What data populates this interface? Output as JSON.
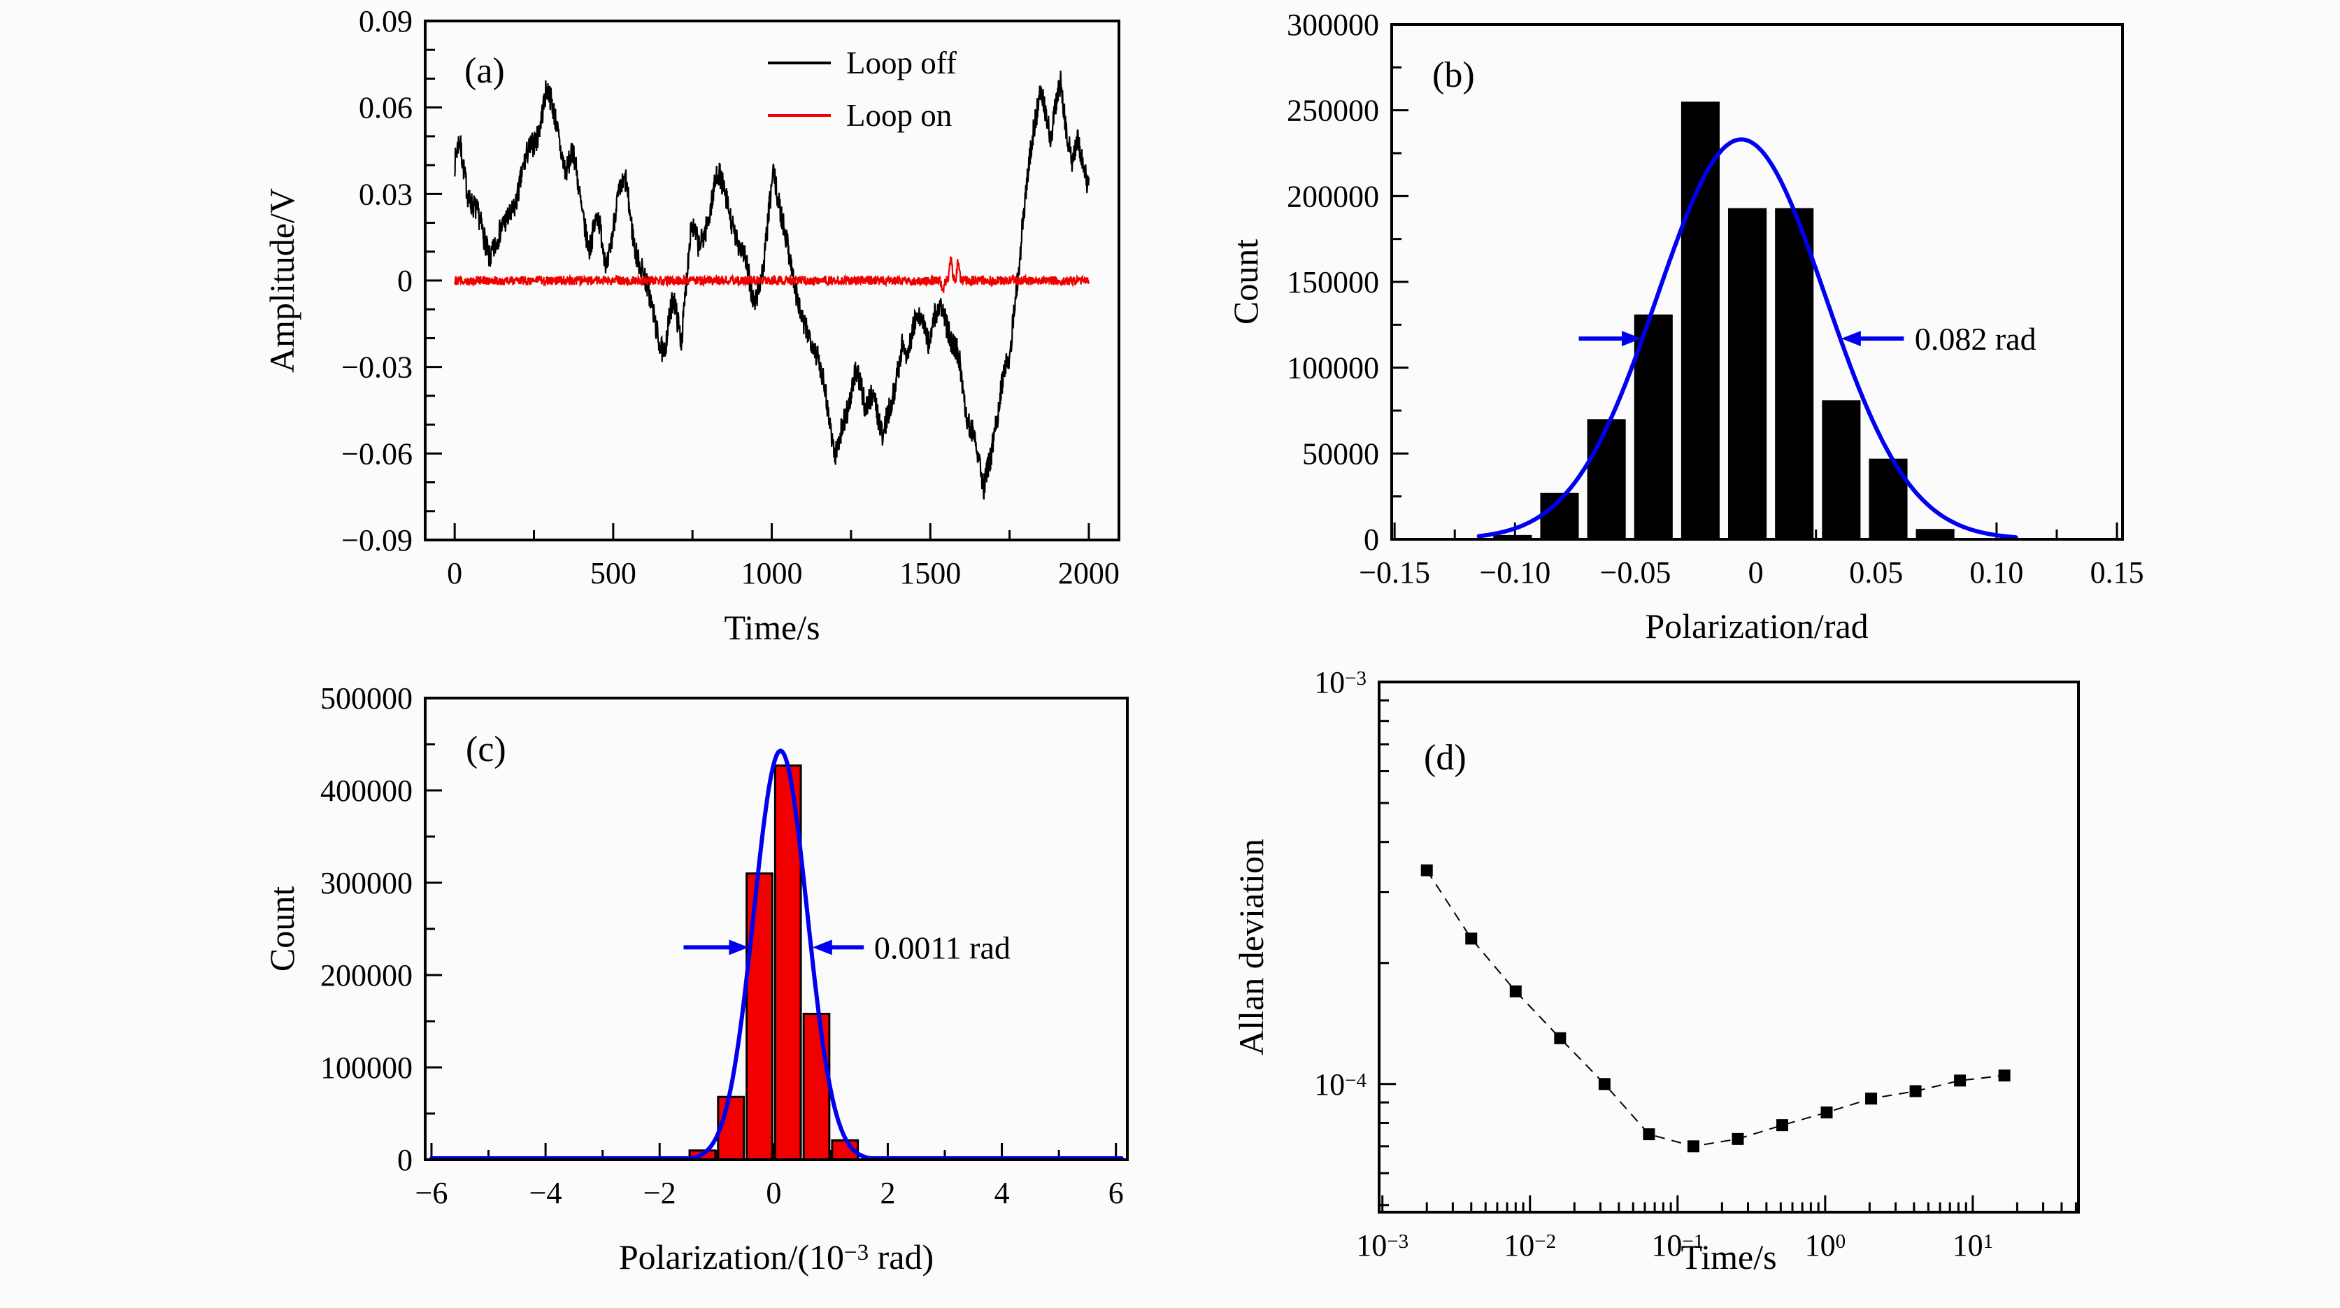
{
  "figure": {
    "background": "#fbfbfb",
    "panel_letters": [
      "(a)",
      "(b)",
      "(c)",
      "(d)"
    ]
  },
  "chart_data": [
    {
      "id": "a",
      "type": "line",
      "label": "(a)",
      "xlabel": "Time/s",
      "ylabel": "Amplitude/V",
      "xlim": [
        -93,
        2095
      ],
      "ylim": [
        -0.09,
        0.09
      ],
      "grid": false,
      "legend_position": "top-right-inside",
      "xticks": {
        "values": [
          0,
          500,
          1000,
          1500,
          2000
        ],
        "labels": [
          "0",
          "500",
          "1000",
          "1500",
          "2000"
        ],
        "minor_step": 250
      },
      "yticks": {
        "values": [
          0.09,
          0.06,
          0.03,
          0,
          -0.03,
          -0.06,
          -0.09
        ],
        "labels": [
          "0.09",
          "0.06",
          "0.03",
          "0",
          "−0.03",
          "−0.06",
          "−0.09"
        ],
        "minor_step": 0.01
      },
      "legend": {
        "entries": [
          {
            "label": "Loop off",
            "color": "#000000"
          },
          {
            "label": "Loop on",
            "color": "#ee0000"
          }
        ]
      },
      "series": [
        {
          "name": "Loop off",
          "color": "#000000",
          "noise": 0.0045,
          "wobble": 0.002,
          "seed": 7,
          "waypoints": [
            [
              0,
              0.038
            ],
            [
              15,
              0.048
            ],
            [
              45,
              0.028
            ],
            [
              75,
              0.02
            ],
            [
              110,
              0.01
            ],
            [
              150,
              0.018
            ],
            [
              190,
              0.028
            ],
            [
              230,
              0.042
            ],
            [
              260,
              0.05
            ],
            [
              290,
              0.065
            ],
            [
              320,
              0.055
            ],
            [
              350,
              0.04
            ],
            [
              375,
              0.044
            ],
            [
              400,
              0.026
            ],
            [
              425,
              0.012
            ],
            [
              450,
              0.02
            ],
            [
              480,
              0.004
            ],
            [
              510,
              0.026
            ],
            [
              540,
              0.034
            ],
            [
              570,
              0.013
            ],
            [
              600,
              0.0
            ],
            [
              630,
              -0.012
            ],
            [
              660,
              -0.027
            ],
            [
              690,
              -0.008
            ],
            [
              715,
              -0.02
            ],
            [
              745,
              0.018
            ],
            [
              770,
              0.012
            ],
            [
              800,
              0.024
            ],
            [
              830,
              0.037
            ],
            [
              860,
              0.028
            ],
            [
              890,
              0.012
            ],
            [
              915,
              0.006
            ],
            [
              945,
              -0.007
            ],
            [
              975,
              0.004
            ],
            [
              1005,
              0.04
            ],
            [
              1035,
              0.022
            ],
            [
              1070,
              -0.002
            ],
            [
              1100,
              -0.014
            ],
            [
              1135,
              -0.027
            ],
            [
              1165,
              -0.033
            ],
            [
              1200,
              -0.062
            ],
            [
              1235,
              -0.044
            ],
            [
              1265,
              -0.03
            ],
            [
              1295,
              -0.046
            ],
            [
              1320,
              -0.037
            ],
            [
              1350,
              -0.057
            ],
            [
              1380,
              -0.042
            ],
            [
              1410,
              -0.021
            ],
            [
              1430,
              -0.026
            ],
            [
              1455,
              -0.012
            ],
            [
              1475,
              -0.01
            ],
            [
              1495,
              -0.022
            ],
            [
              1515,
              -0.014
            ],
            [
              1540,
              -0.01
            ],
            [
              1565,
              -0.021
            ],
            [
              1590,
              -0.029
            ],
            [
              1615,
              -0.046
            ],
            [
              1640,
              -0.051
            ],
            [
              1668,
              -0.073
            ],
            [
              1695,
              -0.056
            ],
            [
              1725,
              -0.037
            ],
            [
              1750,
              -0.028
            ],
            [
              1772,
              -0.002
            ],
            [
              1800,
              0.028
            ],
            [
              1825,
              0.05
            ],
            [
              1850,
              0.07
            ],
            [
              1867,
              0.059
            ],
            [
              1880,
              0.049
            ],
            [
              1897,
              0.061
            ],
            [
              1912,
              0.07
            ],
            [
              1932,
              0.051
            ],
            [
              1950,
              0.04
            ],
            [
              1965,
              0.046
            ],
            [
              1983,
              0.038
            ],
            [
              2000,
              0.033
            ]
          ]
        },
        {
          "name": "Loop on",
          "color": "#ee0000",
          "noise": 0.0016,
          "wobble": 0,
          "seed": 12,
          "waypoints": [
            [
              0,
              0
            ],
            [
              2000,
              0
            ]
          ],
          "spikes": [
            [
              1540,
              -0.004
            ],
            [
              1565,
              0.009
            ],
            [
              1588,
              0.007
            ]
          ]
        }
      ]
    },
    {
      "id": "b",
      "type": "histogram",
      "label": "(b)",
      "xlabel": "Polarization/rad",
      "ylabel": "Count",
      "xlim": [
        -0.1512,
        0.1523
      ],
      "ylim": [
        0,
        300000
      ],
      "grid": false,
      "xticks": {
        "values": [
          -0.15,
          -0.1,
          -0.05,
          0,
          0.05,
          0.1,
          0.15
        ],
        "labels": [
          "−0.15",
          "−0.10",
          "−0.05",
          "0",
          "0.05",
          "0.10",
          "0.15"
        ],
        "minor_step": 0.025
      },
      "yticks": {
        "values": [
          0,
          50000,
          100000,
          150000,
          200000,
          250000,
          300000
        ],
        "labels": [
          "0",
          "50000",
          "100000",
          "150000",
          "200000",
          "250000",
          "300000"
        ],
        "minor_step": 25000
      },
      "bars": {
        "color": "#000000",
        "width": 0.016,
        "centers": [
          -0.101,
          -0.0815,
          -0.062,
          -0.0425,
          -0.023,
          -0.0035,
          0.016,
          0.0355,
          0.055,
          0.0745
        ],
        "heights": [
          2500,
          27000,
          70000,
          131000,
          255000,
          193000,
          193000,
          81000,
          47000,
          6000
        ]
      },
      "gauss": {
        "color": "#0000ee",
        "amplitude": 233000,
        "mu": -0.006,
        "sigma": 0.035,
        "range": [
          -0.115,
          0.108
        ]
      },
      "annotation": {
        "text": "0.082 rad",
        "arrow_color": "#0000ee",
        "text_color": "#000000",
        "y": 117000,
        "arrow_left": {
          "from": -0.0735,
          "to": -0.0475
        },
        "arrow_right": {
          "from": 0.0615,
          "to": 0.0355
        },
        "text_x": 0.066
      }
    },
    {
      "id": "c",
      "type": "histogram",
      "label": "(c)",
      "xlabel_segments": [
        {
          "t": "Polarization/(10"
        },
        {
          "sup": "−3"
        },
        {
          "t": " rad)"
        }
      ],
      "ylabel": "Count",
      "xlim": [
        -6.11,
        6.2
      ],
      "ylim": [
        0,
        500000
      ],
      "grid": false,
      "xticks": {
        "values": [
          -6,
          -4,
          -2,
          0,
          2,
          4,
          6
        ],
        "labels": [
          "−6",
          "−4",
          "−2",
          "0",
          "2",
          "4",
          "6"
        ],
        "minor_step": 1
      },
      "yticks": {
        "values": [
          0,
          100000,
          200000,
          300000,
          400000,
          500000
        ],
        "labels": [
          "0",
          "100000",
          "200000",
          "300000",
          "400000",
          "500000"
        ],
        "minor_step": 50000
      },
      "bars": {
        "color": "#f20000",
        "edge": "#000000",
        "width": 0.45,
        "centers": [
          -1.25,
          -0.75,
          -0.25,
          0.25,
          0.75,
          1.25
        ],
        "heights": [
          10000,
          68000,
          310000,
          427000,
          158000,
          21000
        ]
      },
      "gauss": {
        "color": "#0000ee",
        "amplitude": 443000,
        "mu": 0.12,
        "sigma": 0.467,
        "range": [
          -6.0,
          6.1
        ]
      },
      "annotation": {
        "text": "0.0011 rad",
        "arrow_color": "#0000ee",
        "text_color": "#000000",
        "y": 230000,
        "arrow_left": {
          "from": -1.58,
          "to": -0.44
        },
        "arrow_right": {
          "from": 1.58,
          "to": 0.68
        },
        "text_x": 1.76
      }
    },
    {
      "id": "d",
      "type": "scatter_line",
      "label": "(d)",
      "xlabel": "Time/s",
      "ylabel": "Allan deviation",
      "xscale": "log",
      "yscale": "log",
      "xlim": [
        0.00095,
        52
      ],
      "ylim": [
        4.8e-05,
        0.001
      ],
      "grid": false,
      "xticks": {
        "values": [
          0.001,
          0.01,
          0.1,
          1,
          10
        ],
        "labels": [
          [
            {
              "t": "10"
            },
            {
              "sup": "−3"
            }
          ],
          [
            {
              "t": "10"
            },
            {
              "sup": "−2"
            }
          ],
          [
            {
              "t": "10"
            },
            {
              "sup": "−1"
            }
          ],
          [
            {
              "t": "10"
            },
            {
              "sup": "0"
            }
          ],
          [
            {
              "t": "10"
            },
            {
              "sup": "1"
            }
          ]
        ]
      },
      "yticks": {
        "values": [
          0.001,
          0.0001
        ],
        "labels": [
          [
            {
              "t": "10"
            },
            {
              "sup": "−3"
            }
          ],
          [
            {
              "t": "10"
            },
            {
              "sup": "−4"
            }
          ]
        ]
      },
      "marker": {
        "shape": "square",
        "color": "#000000",
        "size": 17
      },
      "line": {
        "color": "#000000",
        "dash": "14 10",
        "width": 2
      },
      "x": [
        0.002,
        0.004,
        0.008,
        0.016,
        0.032,
        0.064,
        0.128,
        0.256,
        0.512,
        1.024,
        2.048,
        4.096,
        8.192,
        16.384
      ],
      "y": [
        0.00034,
        0.00023,
        0.00017,
        0.00013,
        0.0001,
        7.5e-05,
        7e-05,
        7.3e-05,
        7.9e-05,
        8.5e-05,
        9.2e-05,
        9.6e-05,
        0.000102,
        0.000105
      ]
    }
  ]
}
